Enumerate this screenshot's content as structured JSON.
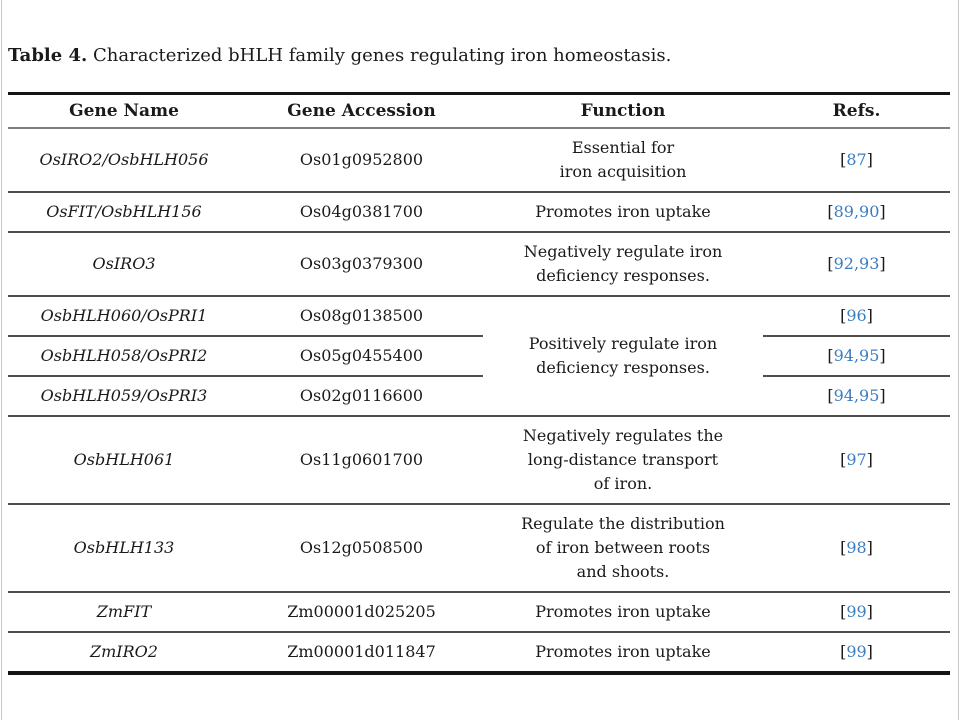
{
  "caption": {
    "label": "Table 4.",
    "text": " Characterized bHLH family genes regulating iron homeostasis."
  },
  "table": {
    "headers": [
      "Gene Name",
      "Gene Accession",
      "Function",
      "Refs."
    ],
    "rows": [
      {
        "gene": "OsIRO2/OsbHLH056",
        "accession": "Os01g0952800",
        "function": "Essential for\niron acquisition",
        "function_rowspan": 1,
        "refs": "87"
      },
      {
        "gene": "OsFIT/OsbHLH156",
        "accession": "Os04g0381700",
        "function": "Promotes iron uptake",
        "function_rowspan": 1,
        "refs": "89,90"
      },
      {
        "gene": "OsIRO3",
        "accession": "Os03g0379300",
        "function": "Negatively regulate iron\ndeficiency responses.",
        "function_rowspan": 1,
        "refs": "92,93"
      },
      {
        "gene": "OsbHLH060/OsPRI1",
        "accession": "Os08g0138500",
        "function": "Positively regulate iron\ndeficiency responses.",
        "function_rowspan": 3,
        "refs": "96"
      },
      {
        "gene": "OsbHLH058/OsPRI2",
        "accession": "Os05g0455400",
        "function": null,
        "function_rowspan": 0,
        "refs": "94,95"
      },
      {
        "gene": "OsbHLH059/OsPRI3",
        "accession": "Os02g0116600",
        "function": null,
        "function_rowspan": 0,
        "refs": "94,95"
      },
      {
        "gene": "OsbHLH061",
        "accession": "Os11g0601700",
        "function": "Negatively regulates the\nlong-distance transport\nof iron.",
        "function_rowspan": 1,
        "refs": "97"
      },
      {
        "gene": "OsbHLH133",
        "accession": "Os12g0508500",
        "function": "Regulate the distribution\nof iron between roots\nand shoots.",
        "function_rowspan": 1,
        "refs": "98"
      },
      {
        "gene": "ZmFIT",
        "accession": "Zm00001d025205",
        "function": "Promotes iron uptake",
        "function_rowspan": 1,
        "refs": "99"
      },
      {
        "gene": "ZmIRO2",
        "accession": "Zm00001d011847",
        "function": "Promotes iron uptake",
        "function_rowspan": 1,
        "refs": "99"
      }
    ],
    "colors": {
      "reference_link": "#3b7cbe",
      "text": "#1a1a1a",
      "heavy_rule": "#141414",
      "header_rule": "#7f7f7f",
      "row_rule": "#4f4f4f"
    }
  }
}
